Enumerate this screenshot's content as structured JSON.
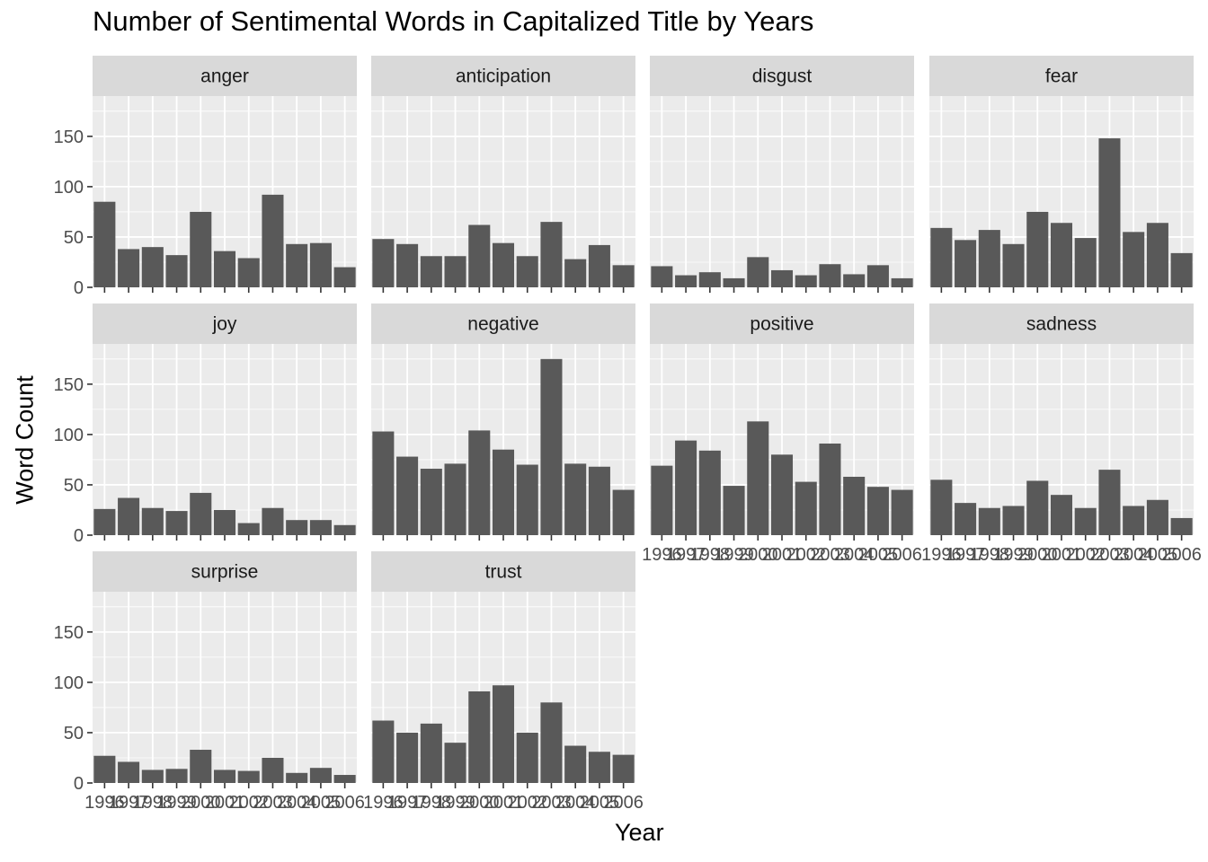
{
  "chart_data": {
    "type": "bar",
    "title": "Number of Sentimental Words in Capitalized Title by Years",
    "xlabel": "Year",
    "ylabel": "Word Count",
    "ylim": [
      0,
      190
    ],
    "y_ticks": [
      0,
      50,
      100,
      150
    ],
    "x_tick_labels": [
      "1996",
      "1997",
      "1998",
      "1999",
      "2000",
      "2001",
      "2002",
      "2003",
      "2004",
      "2005",
      "2006"
    ],
    "grid": true,
    "bar_color": "#595959",
    "panel_bg": "#ebebeb",
    "strip_bg": "#d9d9d9",
    "facets": [
      {
        "name": "anger",
        "values": [
          85,
          38,
          40,
          32,
          75,
          36,
          29,
          92,
          43,
          44,
          20
        ]
      },
      {
        "name": "anticipation",
        "values": [
          48,
          43,
          31,
          31,
          62,
          44,
          31,
          65,
          28,
          42,
          22
        ]
      },
      {
        "name": "disgust",
        "values": [
          21,
          12,
          15,
          9,
          30,
          17,
          12,
          23,
          13,
          22,
          9
        ]
      },
      {
        "name": "fear",
        "values": [
          59,
          47,
          57,
          43,
          75,
          64,
          49,
          148,
          55,
          64,
          34
        ]
      },
      {
        "name": "joy",
        "values": [
          26,
          37,
          27,
          24,
          42,
          25,
          12,
          27,
          15,
          15,
          10
        ]
      },
      {
        "name": "negative",
        "values": [
          103,
          78,
          66,
          71,
          104,
          85,
          70,
          175,
          71,
          68,
          45
        ]
      },
      {
        "name": "positive",
        "values": [
          69,
          94,
          84,
          49,
          113,
          80,
          53,
          91,
          58,
          48,
          45
        ]
      },
      {
        "name": "sadness",
        "values": [
          55,
          32,
          27,
          29,
          54,
          40,
          27,
          65,
          29,
          35,
          17
        ]
      },
      {
        "name": "surprise",
        "values": [
          27,
          21,
          13,
          14,
          33,
          13,
          12,
          25,
          10,
          15,
          8
        ]
      },
      {
        "name": "trust",
        "values": [
          62,
          50,
          59,
          40,
          91,
          97,
          50,
          80,
          37,
          31,
          28
        ]
      }
    ]
  }
}
